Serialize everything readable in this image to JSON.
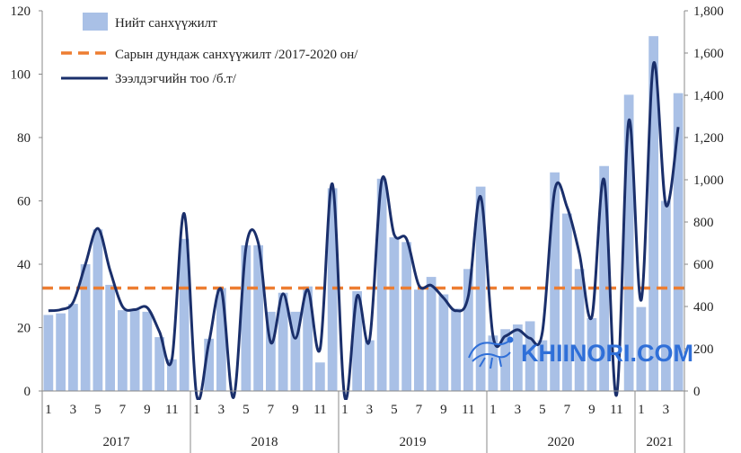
{
  "chart_data": {
    "type": "bar",
    "x_ticks": [
      "1",
      "3",
      "5",
      "7",
      "9",
      "11",
      "1",
      "3",
      "5",
      "7",
      "9",
      "11",
      "1",
      "3",
      "5",
      "7",
      "9",
      "11",
      "1",
      "3",
      "5",
      "7",
      "9",
      "11",
      "1",
      "3",
      "5"
    ],
    "years": [
      "2017",
      "2018",
      "2019",
      "2020",
      "2021"
    ],
    "y_left": {
      "min": 0,
      "max": 120,
      "ticks": [
        "0",
        "20",
        "40",
        "60",
        "80",
        "100",
        "120"
      ]
    },
    "y_right": {
      "min": 0,
      "max": 1800,
      "ticks": [
        "0",
        "200",
        "400",
        "600",
        "800",
        "1,000",
        "1,200",
        "1,400",
        "1,600",
        "1,800"
      ]
    },
    "legend": {
      "bars": "Нийт санхүүжилт",
      "dashed": "Сарын дундаж санхүүжилт  /2017-2020 он/",
      "line": "Зээлдэгчийн тоо /б.т/"
    },
    "legend_position": "top-left",
    "series": [
      {
        "name": "Нийт санхүүжилт",
        "kind": "bar",
        "axis": "left",
        "color": "#a9c0e6",
        "values": [
          24,
          24.5,
          27.5,
          40,
          51,
          33.5,
          25.5,
          25.5,
          25,
          17,
          10,
          48,
          0,
          16.5,
          32.5,
          0,
          46,
          46,
          25,
          31,
          25,
          33,
          9,
          64,
          0,
          31.5,
          16,
          67,
          48.5,
          47,
          32,
          36,
          30.5,
          26,
          38.5,
          64.5,
          17.5,
          19.5,
          21,
          22,
          16,
          69,
          56,
          38.5,
          23,
          71,
          0,
          93.5,
          26.5,
          112,
          60,
          94
        ]
      },
      {
        "name": "Сарын дундаж санхүүжилт  /2017-2020 он/",
        "kind": "dashed-line",
        "axis": "left",
        "color": "#ed7d31",
        "value": 32.5
      },
      {
        "name": "Зээлдэгчийн тоо /б.т/",
        "kind": "line",
        "axis": "right",
        "color": "#1a2f6b",
        "values": [
          380,
          385,
          420,
          600,
          770,
          570,
          400,
          385,
          395,
          280,
          150,
          840,
          -20,
          230,
          480,
          -30,
          680,
          700,
          230,
          460,
          250,
          480,
          200,
          980,
          -30,
          450,
          240,
          1000,
          740,
          720,
          500,
          500,
          440,
          380,
          450,
          920,
          260,
          260,
          290,
          250,
          280,
          950,
          870,
          650,
          350,
          1000,
          -20,
          1280,
          430,
          1550,
          880,
          1250
        ]
      }
    ]
  },
  "watermark": {
    "text": "KHIINORI.COM",
    "color": "#2f6fd8"
  }
}
